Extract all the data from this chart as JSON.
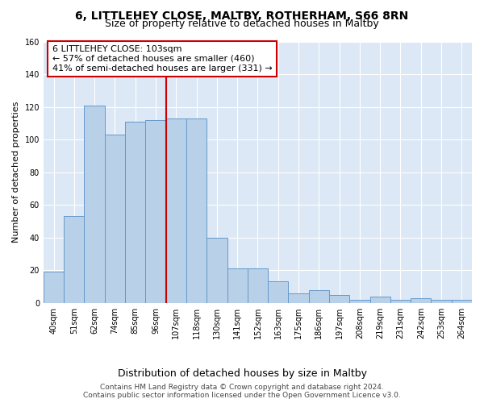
{
  "title": "6, LITTLEHEY CLOSE, MALTBY, ROTHERHAM, S66 8RN",
  "subtitle": "Size of property relative to detached houses in Maltby",
  "xlabel": "Distribution of detached houses by size in Maltby",
  "ylabel": "Number of detached properties",
  "categories": [
    "40sqm",
    "51sqm",
    "62sqm",
    "74sqm",
    "85sqm",
    "96sqm",
    "107sqm",
    "118sqm",
    "130sqm",
    "141sqm",
    "152sqm",
    "163sqm",
    "175sqm",
    "186sqm",
    "197sqm",
    "208sqm",
    "219sqm",
    "231sqm",
    "242sqm",
    "253sqm",
    "264sqm"
  ],
  "values": [
    19,
    53,
    121,
    103,
    111,
    112,
    113,
    113,
    40,
    21,
    21,
    13,
    6,
    8,
    5,
    2,
    4,
    2,
    3,
    2,
    2
  ],
  "bar_color": "#b8d0e8",
  "bar_edge_color": "#6699cc",
  "vline_color": "#cc0000",
  "vline_index": 6,
  "annotation_line1": "6 LITTLEHEY CLOSE: 103sqm",
  "annotation_line2": "← 57% of detached houses are smaller (460)",
  "annotation_line3": "41% of semi-detached houses are larger (331) →",
  "annotation_box_edge_color": "#cc0000",
  "annotation_box_fill": "white",
  "ylim": [
    0,
    160
  ],
  "yticks": [
    0,
    20,
    40,
    60,
    80,
    100,
    120,
    140,
    160
  ],
  "footer_text": "Contains HM Land Registry data © Crown copyright and database right 2024.\nContains public sector information licensed under the Open Government Licence v3.0.",
  "bg_color": "#dce8f5",
  "fig_bg_color": "#ffffff",
  "grid_color": "#ffffff",
  "title_fontsize": 10,
  "subtitle_fontsize": 9,
  "tick_fontsize": 7,
  "ylabel_fontsize": 8,
  "xlabel_fontsize": 9,
  "footer_fontsize": 6.5
}
